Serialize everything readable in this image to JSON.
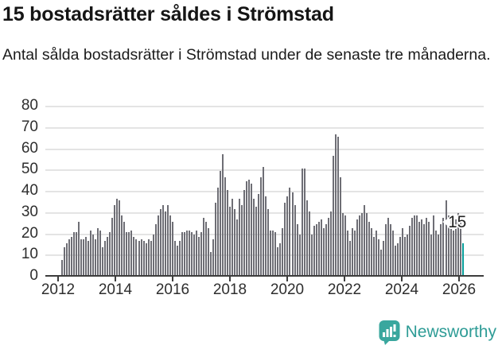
{
  "header": {
    "title": "15 bostadsrätter såldes i Strömstad",
    "subtitle": "Antal sålda bostadsrätter i Strömstad under de senaste tre månaderna."
  },
  "chart_data": {
    "type": "bar",
    "title": "15 bostadsrätter såldes i Strömstad",
    "xlabel": "",
    "ylabel": "",
    "frequency": "monthly",
    "x_start": "2012-02",
    "x_end": "2026-01",
    "ylim": [
      0,
      80
    ],
    "grid": true,
    "yticks": [
      0,
      10,
      20,
      30,
      40,
      50,
      60,
      70,
      80
    ],
    "xticks": [
      "2012",
      "2014",
      "2016",
      "2018",
      "2020",
      "2022",
      "2024",
      "2026"
    ],
    "values": [
      7,
      13,
      15,
      17,
      18,
      20,
      20,
      25,
      17,
      17,
      18,
      16,
      21,
      19,
      17,
      22,
      21,
      13,
      16,
      18,
      20,
      27,
      33,
      36,
      35,
      28,
      25,
      20,
      20,
      21,
      18,
      17,
      16,
      17,
      16,
      15,
      17,
      16,
      19,
      24,
      28,
      31,
      33,
      30,
      33,
      28,
      25,
      16,
      14,
      16,
      20,
      20,
      21,
      21,
      20,
      19,
      21,
      18,
      20,
      27,
      25,
      22,
      11,
      17,
      34,
      41,
      49,
      57,
      46,
      40,
      32,
      36,
      31,
      26,
      36,
      33,
      40,
      44,
      45,
      43,
      36,
      32,
      38,
      46,
      51,
      37,
      31,
      21,
      21,
      20,
      13,
      15,
      22,
      34,
      37,
      41,
      39,
      33,
      24,
      19,
      50,
      50,
      35,
      30,
      19,
      23,
      24,
      25,
      26,
      22,
      24,
      27,
      30,
      56,
      66,
      65,
      46,
      29,
      28,
      21,
      16,
      22,
      21,
      26,
      28,
      29,
      33,
      29,
      25,
      22,
      18,
      21,
      17,
      12,
      16,
      24,
      27,
      24,
      21,
      14,
      15,
      18,
      22,
      18,
      19,
      23,
      27,
      28,
      28,
      25,
      26,
      24,
      27,
      25,
      19,
      28,
      21,
      19,
      24,
      27,
      35,
      28,
      27,
      21,
      26,
      29,
      28,
      15
    ],
    "highlight": {
      "index": 167,
      "value": 15,
      "label": "15",
      "color": "#079e9b"
    },
    "bar_color": "#6e6e75",
    "legend_position": "none"
  },
  "footer": {
    "brand": "Newsworthy",
    "logo_icon": "bar-chart-speech-bubble-icon",
    "brand_color": "#2e9c96",
    "logo_bg": "#3aa79e"
  }
}
